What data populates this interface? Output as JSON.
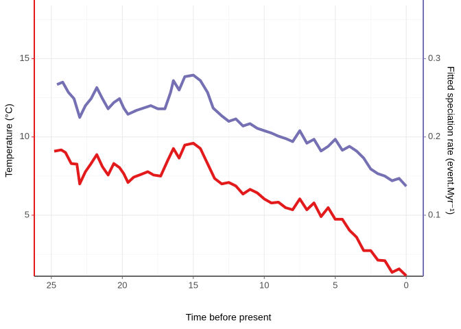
{
  "chart_data": {
    "type": "line",
    "xlabel": "Time before present",
    "ylabel": "Temperature (°C)",
    "y2label": "Fitted speciation rate (event.Myr⁻¹)",
    "xlim": [
      26.2,
      -1.2
    ],
    "xticks": [
      25,
      20,
      15,
      10,
      5,
      0
    ],
    "ylim": [
      1.1,
      18.4
    ],
    "yticks": [
      5,
      10,
      15
    ],
    "y2lim": [
      0.022,
      0.368
    ],
    "y2ticks": [
      0.1,
      0.2,
      0.3
    ],
    "grid": true,
    "series": [
      {
        "name": "Temperature",
        "color": "#e31a1c",
        "axis": "y",
        "x": [
          24.8,
          24.3,
          24,
          23.6,
          23.2,
          23,
          22.6,
          22.2,
          21.8,
          21.4,
          21,
          20.6,
          20.2,
          19.9,
          19.6,
          19.2,
          18.7,
          18.2,
          17.8,
          17.3,
          16.8,
          16.4,
          16,
          15.6,
          15,
          14.5,
          14,
          13.5,
          13,
          12.5,
          12,
          11.5,
          11,
          10.5,
          10,
          9.5,
          9,
          8.5,
          8,
          7.5,
          7,
          6.5,
          6,
          5.5,
          5,
          4.5,
          4,
          3.5,
          3,
          2.5,
          2,
          1.5,
          1,
          0.5,
          0
        ],
        "values": [
          9.09,
          9.17,
          9.0,
          8.3,
          8.26,
          7.0,
          7.78,
          8.3,
          8.87,
          8.1,
          7.57,
          8.3,
          8.04,
          7.65,
          7.09,
          7.43,
          7.6,
          7.78,
          7.57,
          7.5,
          8.5,
          9.26,
          8.65,
          9.48,
          9.6,
          9.26,
          8.3,
          7.35,
          7.0,
          7.09,
          6.87,
          6.35,
          6.65,
          6.43,
          6.04,
          5.78,
          5.83,
          5.48,
          5.35,
          6.04,
          5.35,
          5.78,
          4.91,
          5.48,
          4.74,
          4.74,
          4.04,
          3.6,
          2.74,
          2.74,
          2.13,
          2.09,
          1.35,
          1.57,
          1.13
        ]
      },
      {
        "name": "Fitted speciation rate",
        "color": "#7570b3",
        "axis": "y2",
        "x": [
          24.6,
          24.2,
          23.8,
          23.4,
          23,
          22.6,
          22.2,
          21.8,
          21.4,
          21,
          20.6,
          20.2,
          19.9,
          19.6,
          19,
          18.5,
          18,
          17.5,
          17,
          16.6,
          16.4,
          16,
          15.6,
          15,
          14.5,
          14,
          13.6,
          13,
          12.5,
          12,
          11.5,
          11,
          10.5,
          10,
          9.5,
          9,
          8.5,
          8,
          7.5,
          7,
          6.5,
          6,
          5.5,
          5,
          4.5,
          4,
          3.5,
          3,
          2.5,
          2,
          1.5,
          1,
          0.5,
          0
        ],
        "values": [
          0.267,
          0.27,
          0.257,
          0.249,
          0.225,
          0.24,
          0.249,
          0.263,
          0.249,
          0.236,
          0.244,
          0.249,
          0.237,
          0.229,
          0.234,
          0.237,
          0.24,
          0.236,
          0.236,
          0.257,
          0.272,
          0.26,
          0.277,
          0.279,
          0.272,
          0.257,
          0.237,
          0.227,
          0.22,
          0.223,
          0.214,
          0.217,
          0.211,
          0.208,
          0.205,
          0.201,
          0.198,
          0.194,
          0.208,
          0.192,
          0.197,
          0.182,
          0.188,
          0.197,
          0.183,
          0.188,
          0.182,
          0.173,
          0.159,
          0.153,
          0.15,
          0.144,
          0.147,
          0.137
        ]
      }
    ]
  }
}
